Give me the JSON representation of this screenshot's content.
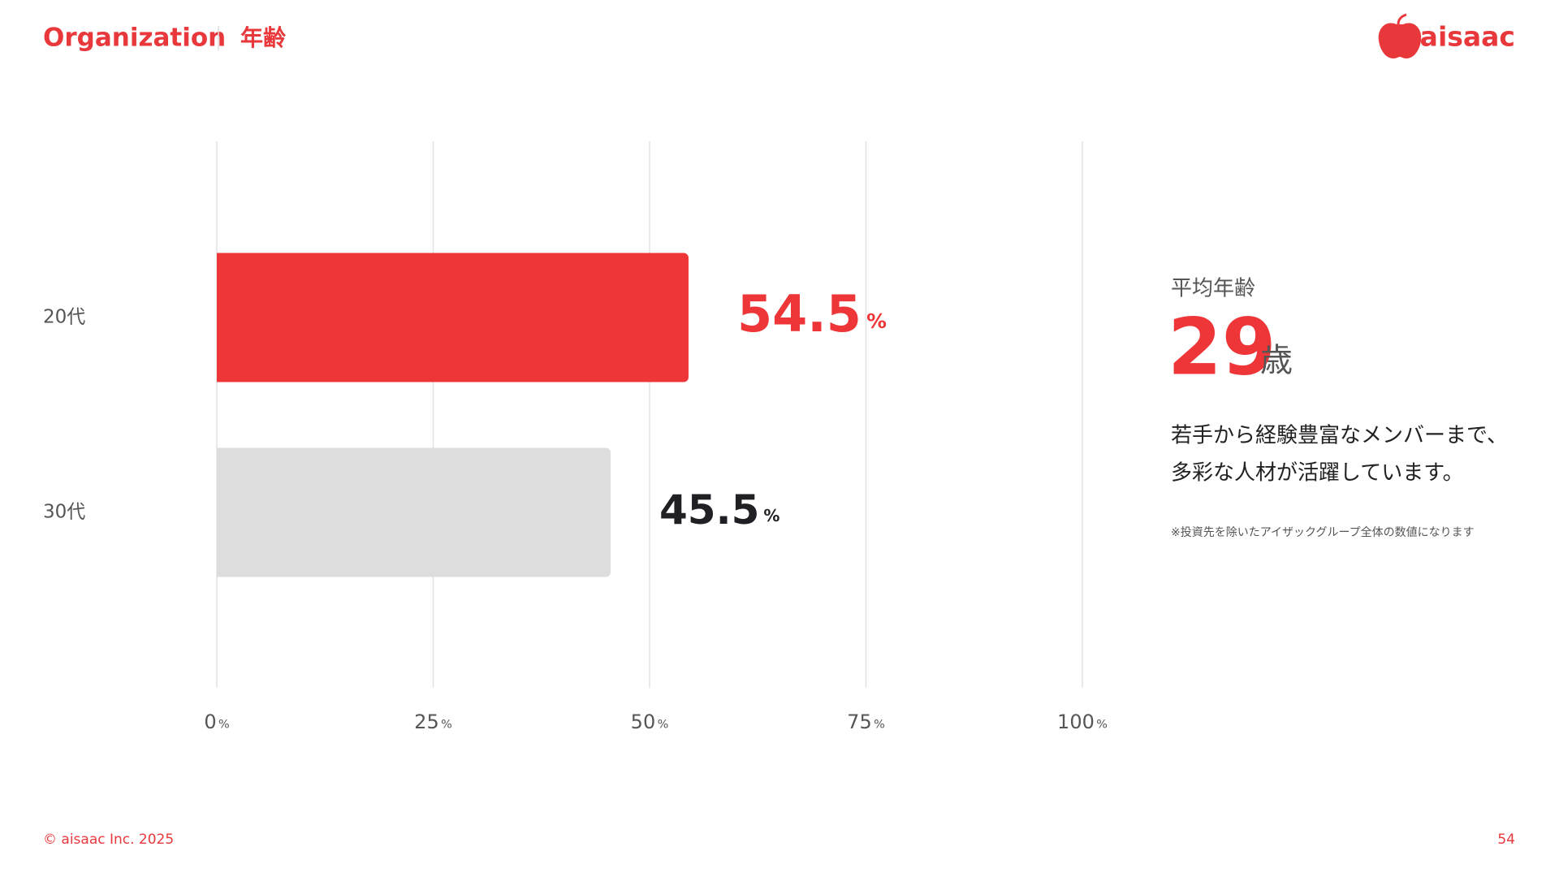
{
  "header": {
    "section": "Organization",
    "topic": "年齢",
    "logo": "aisaac"
  },
  "chart_data": {
    "type": "bar",
    "orientation": "horizontal",
    "categories": [
      "20代",
      "30代"
    ],
    "values": [
      54.5,
      45.5
    ],
    "value_labels": [
      "54.5%",
      "45.5%"
    ],
    "colors": [
      "#ee3639",
      "#dddddd"
    ],
    "label_colors": [
      "#ee3639",
      "#1f1f24"
    ],
    "xlim": [
      0,
      100
    ],
    "xticks": [
      {
        "value": 0,
        "label": "0%"
      },
      {
        "value": 25,
        "label": "25%"
      },
      {
        "value": 50,
        "label": "50%"
      },
      {
        "value": 75,
        "label": "75%"
      },
      {
        "value": 100,
        "label": "100%"
      }
    ],
    "grid": true
  },
  "summary": {
    "label": "平均年齢",
    "value": "29",
    "unit": "歳",
    "description": [
      "若手から経験豊富なメンバーまで、",
      "多彩な人材が活躍しています。"
    ],
    "note": "※投資先を除いたアイザックグループ全体の数値になります"
  },
  "footer": {
    "copyright": "© aisaac Inc. 2025",
    "page": "54"
  }
}
